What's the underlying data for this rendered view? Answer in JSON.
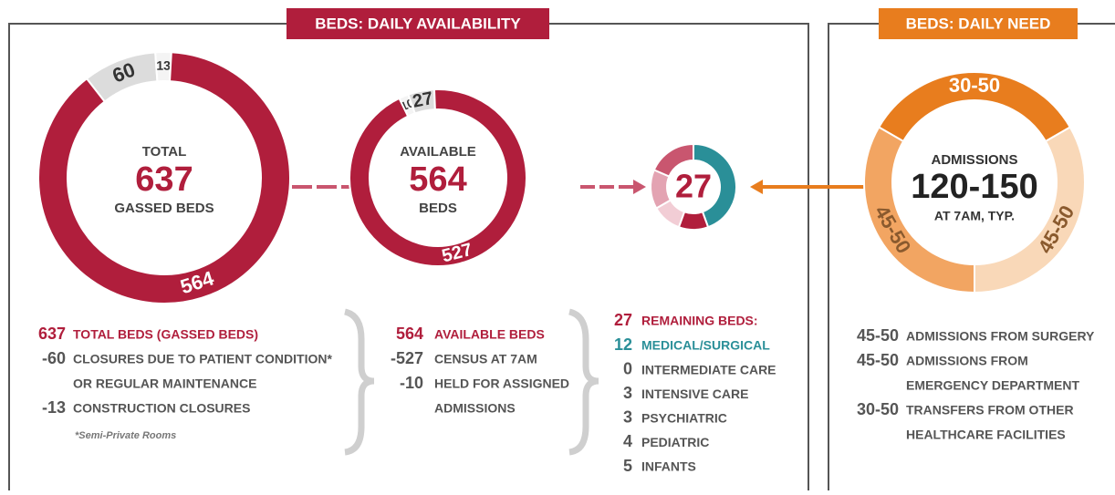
{
  "availability": {
    "title": "BEDS: DAILY AVAILABILITY",
    "total": {
      "top": "TOTAL",
      "value": 637,
      "bottom": "GASSED BEDS",
      "segments": [
        60,
        13,
        564
      ],
      "colors": [
        "#dcdcdc",
        "#f4f4f4",
        "#b01e3c"
      ],
      "label_colors": [
        "#333333",
        "#333333",
        "#ffffff"
      ]
    },
    "available": {
      "top": "AVAILABLE",
      "value": 564,
      "bottom": "BEDS",
      "segments": [
        10,
        27,
        527
      ],
      "colors": [
        "#f4f4f4",
        "#dcdcdc",
        "#b01e3c"
      ],
      "label_colors": [
        "#333333",
        "#333333",
        "#ffffff"
      ]
    },
    "total_list": [
      {
        "value": 637,
        "lines": [
          "TOTAL BEDS (GASSED BEDS)"
        ]
      },
      {
        "value": -60,
        "lines": [
          "CLOSURES DUE TO PATIENT CONDITION*",
          "OR REGULAR MAINTENANCE"
        ]
      },
      {
        "value": -13,
        "lines": [
          "CONSTRUCTION CLOSURES"
        ]
      }
    ],
    "note": "*Semi-Private Rooms",
    "available_list": [
      {
        "value": 564,
        "lines": [
          "AVAILABLE BEDS"
        ]
      },
      {
        "value": -527,
        "lines": [
          "CENSUS AT 7AM"
        ]
      },
      {
        "value": -10,
        "lines": [
          "HELD FOR ASSIGNED",
          "ADMISSIONS"
        ]
      }
    ],
    "remaining": {
      "value": 27,
      "label": "REMAINING BEDS:",
      "items": [
        {
          "value": 12,
          "label": "MEDICAL/SURGICAL",
          "color": "#2a8f98"
        },
        {
          "value": 0,
          "label": "INTERMEDIATE CARE",
          "color": "#b01e3c"
        },
        {
          "value": 3,
          "label": "INTENSIVE CARE",
          "color": "#b01e3c"
        },
        {
          "value": 3,
          "label": "PSYCHIATRIC",
          "color": "#f2cdd5"
        },
        {
          "value": 4,
          "label": "PEDIATRIC",
          "color": "#e3a3b2"
        },
        {
          "value": 5,
          "label": "INFANTS",
          "color": "#c9566f"
        }
      ]
    }
  },
  "need": {
    "title": "BEDS: DAILY NEED",
    "center": {
      "top": "ADMISSIONS",
      "value": "120-150",
      "bottom": "AT 7AM, TYP."
    },
    "segments": [
      "30-50",
      "45-50",
      "45-50"
    ],
    "list": [
      {
        "value": "45-50",
        "lines": [
          "ADMISSIONS FROM SURGERY"
        ]
      },
      {
        "value": "45-50",
        "lines": [
          "ADMISSIONS FROM",
          "EMERGENCY DEPARTMENT"
        ]
      },
      {
        "value": "30-50",
        "lines": [
          "TRANSFERS FROM OTHER",
          "HEALTHCARE FACILITIES"
        ]
      }
    ]
  }
}
